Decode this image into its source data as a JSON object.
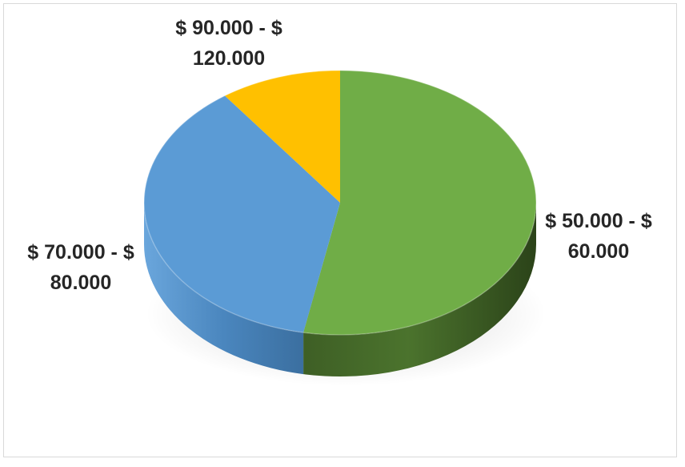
{
  "chart_data": {
    "type": "pie",
    "title": "",
    "style": "3d",
    "slices": [
      {
        "label_line1": "$ 50.000 - $",
        "label_line2": "60.000",
        "value": 53,
        "color": "#70ad47"
      },
      {
        "label_line1": "$ 70.000 - $",
        "label_line2": "80.000",
        "value": 37,
        "color": "#5b9bd5"
      },
      {
        "label_line1": "$ 90.000 - $",
        "label_line2": "120.000",
        "value": 10,
        "color": "#ffc000"
      }
    ]
  }
}
